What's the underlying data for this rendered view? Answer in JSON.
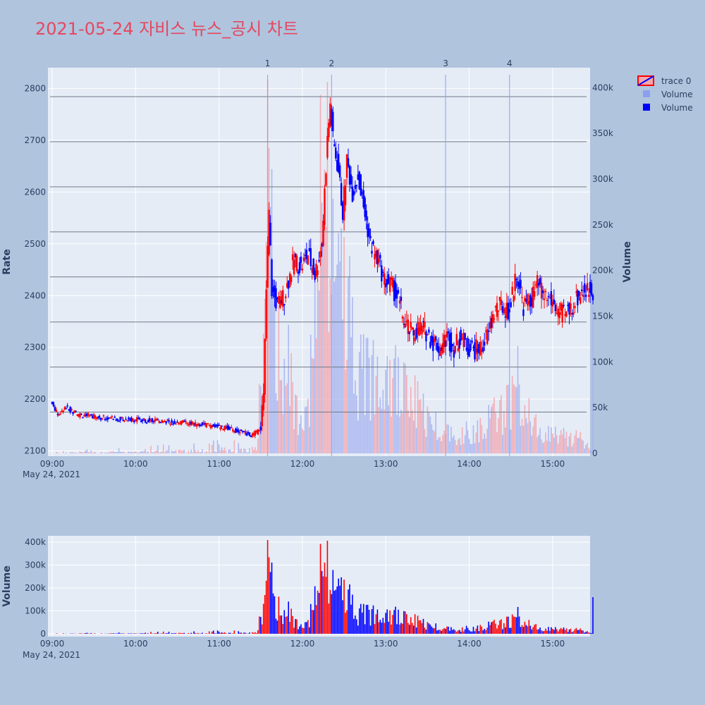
{
  "title": "2021-05-24 자비스 뉴스_공시 차트",
  "colors": {
    "background": "#b0c4de",
    "plot_bg": "#e5ecf6",
    "title": "#e5485f",
    "up": "#ff0000",
    "down": "#0000ff",
    "gridline": "#ffffff",
    "hline": "#6e7a87",
    "news_line": "#8c9ff0",
    "axis_text": "#2a3f5f"
  },
  "legend": {
    "placement": "top-right",
    "items": [
      {
        "label": "trace 0",
        "icon": "candlestick-icon"
      },
      {
        "label": "Volume",
        "icon": "square-light-icon"
      },
      {
        "label": "Volume",
        "icon": "square-blue-icon"
      }
    ]
  },
  "chart_data": [
    {
      "type": "candlestick",
      "date_label": "May 24, 2021",
      "x_range": [
        "09:00",
        "15:30"
      ],
      "x_ticks": [
        "09:00",
        "10:00",
        "11:00",
        "12:00",
        "13:00",
        "14:00",
        "15:00"
      ],
      "ylabel": "Rate",
      "ylim": [
        2090,
        2840
      ],
      "y_ticks": [
        2100,
        2200,
        2300,
        2400,
        2500,
        2600,
        2700,
        2800
      ],
      "y2label": "Volume",
      "y2lim": [
        0,
        425000
      ],
      "y2_ticks": [
        "0",
        "50k",
        "100k",
        "150k",
        "200k",
        "250k",
        "300k",
        "350k",
        "400k"
      ],
      "y2_tick_values": [
        0,
        50000,
        100000,
        150000,
        200000,
        250000,
        300000,
        350000,
        400000
      ],
      "horizontal_lines": [
        2175,
        2262,
        2349,
        2436,
        2523,
        2610,
        2697,
        2784
      ],
      "news_markers": [
        {
          "label": "1",
          "time": "11:35"
        },
        {
          "label": "2",
          "time": "12:21"
        },
        {
          "label": "3",
          "time": "13:43"
        },
        {
          "label": "4",
          "time": "14:29"
        }
      ],
      "price_path": [
        [
          "09:00",
          2195
        ],
        [
          "09:05",
          2170
        ],
        [
          "09:10",
          2185
        ],
        [
          "09:20",
          2170
        ],
        [
          "09:35",
          2165
        ],
        [
          "09:50",
          2162
        ],
        [
          "10:05",
          2160
        ],
        [
          "10:20",
          2158
        ],
        [
          "10:35",
          2155
        ],
        [
          "10:50",
          2150
        ],
        [
          "11:05",
          2145
        ],
        [
          "11:15",
          2138
        ],
        [
          "11:25",
          2130
        ],
        [
          "11:30",
          2140
        ],
        [
          "11:33",
          2200
        ],
        [
          "11:35",
          2410
        ],
        [
          "11:37",
          2560
        ],
        [
          "11:39",
          2410
        ],
        [
          "11:43",
          2380
        ],
        [
          "11:48",
          2400
        ],
        [
          "11:55",
          2470
        ],
        [
          "12:00",
          2455
        ],
        [
          "12:05",
          2480
        ],
        [
          "12:10",
          2440
        ],
        [
          "12:15",
          2500
        ],
        [
          "12:17",
          2600
        ],
        [
          "12:19",
          2700
        ],
        [
          "12:21",
          2770
        ],
        [
          "12:23",
          2700
        ],
        [
          "12:27",
          2640
        ],
        [
          "12:30",
          2560
        ],
        [
          "12:33",
          2660
        ],
        [
          "12:37",
          2600
        ],
        [
          "12:41",
          2630
        ],
        [
          "12:45",
          2570
        ],
        [
          "12:50",
          2500
        ],
        [
          "12:55",
          2470
        ],
        [
          "13:00",
          2430
        ],
        [
          "13:05",
          2420
        ],
        [
          "13:10",
          2390
        ],
        [
          "13:15",
          2345
        ],
        [
          "13:20",
          2325
        ],
        [
          "13:25",
          2340
        ],
        [
          "13:30",
          2330
        ],
        [
          "13:35",
          2310
        ],
        [
          "13:40",
          2300
        ],
        [
          "13:45",
          2320
        ],
        [
          "13:50",
          2300
        ],
        [
          "13:55",
          2320
        ],
        [
          "14:00",
          2300
        ],
        [
          "14:05",
          2295
        ],
        [
          "14:10",
          2300
        ],
        [
          "14:15",
          2330
        ],
        [
          "14:20",
          2375
        ],
        [
          "14:25",
          2380
        ],
        [
          "14:30",
          2370
        ],
        [
          "14:35",
          2445
        ],
        [
          "14:40",
          2380
        ],
        [
          "14:45",
          2390
        ],
        [
          "14:50",
          2420
        ],
        [
          "14:55",
          2400
        ],
        [
          "15:00",
          2390
        ],
        [
          "15:05",
          2370
        ],
        [
          "15:10",
          2360
        ],
        [
          "15:15",
          2380
        ],
        [
          "15:20",
          2400
        ],
        [
          "15:22",
          2410
        ]
      ]
    },
    {
      "type": "bar",
      "ylabel": "Volume",
      "ylim": [
        0,
        440000
      ],
      "y_ticks": [
        "0",
        "100k",
        "200k",
        "300k",
        "400k"
      ],
      "y_tick_values": [
        0,
        100000,
        200000,
        300000,
        400000
      ],
      "x_ticks": [
        "09:00",
        "10:00",
        "11:00",
        "12:00",
        "13:00",
        "14:00",
        "15:00"
      ],
      "date_label": "May 24, 2021",
      "volume_profile": [
        [
          "09:00",
          2000
        ],
        [
          "11:25",
          15000
        ],
        [
          "11:31",
          105000
        ],
        [
          "11:35",
          400000
        ],
        [
          "11:40",
          170000
        ],
        [
          "11:50",
          120000
        ],
        [
          "11:55",
          60000
        ],
        [
          "12:05",
          90000
        ],
        [
          "12:10",
          210000
        ],
        [
          "12:15",
          410000
        ],
        [
          "12:20",
          300000
        ],
        [
          "12:25",
          250000
        ],
        [
          "12:30",
          300000
        ],
        [
          "12:35",
          180000
        ],
        [
          "12:40",
          110000
        ],
        [
          "12:50",
          120000
        ],
        [
          "13:00",
          150000
        ],
        [
          "13:10",
          90000
        ],
        [
          "13:20",
          80000
        ],
        [
          "13:30",
          50000
        ],
        [
          "13:45",
          30000
        ],
        [
          "14:00",
          30000
        ],
        [
          "14:15",
          50000
        ],
        [
          "14:25",
          60000
        ],
        [
          "14:35",
          100000
        ],
        [
          "14:45",
          40000
        ],
        [
          "15:00",
          30000
        ],
        [
          "15:20",
          20000
        ],
        [
          "15:29",
          5000
        ],
        [
          "15:30",
          160000
        ]
      ]
    }
  ]
}
